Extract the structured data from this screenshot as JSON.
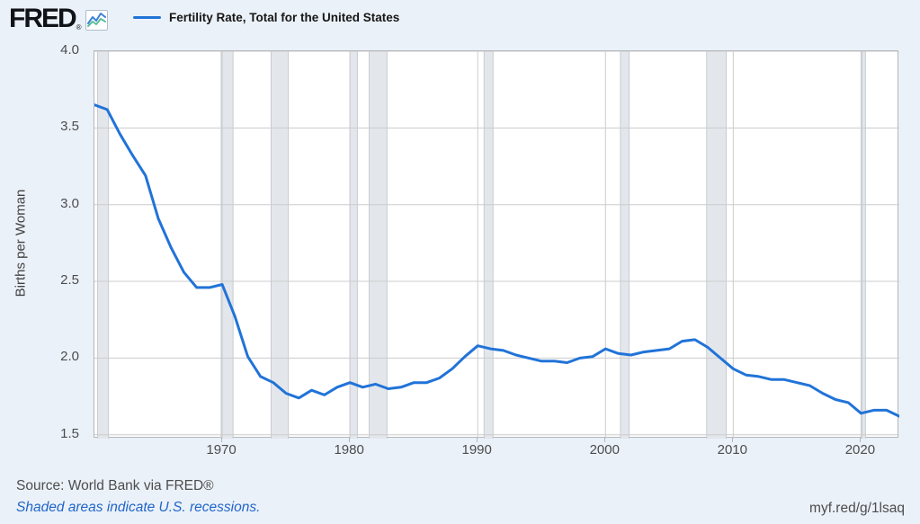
{
  "header": {
    "logo": {
      "text": "FRED",
      "registered": "®"
    },
    "legend": {
      "label": "Fertility Rate, Total for the United States"
    }
  },
  "chart_data": {
    "type": "line",
    "title": "Fertility Rate, Total for the United States",
    "series_name": "Fertility Rate, Total for the United States",
    "xlabel": "",
    "ylabel": "Births per Woman",
    "x": [
      1960,
      1961,
      1962,
      1963,
      1964,
      1965,
      1966,
      1967,
      1968,
      1969,
      1970,
      1971,
      1972,
      1973,
      1974,
      1975,
      1976,
      1977,
      1978,
      1979,
      1980,
      1981,
      1982,
      1983,
      1984,
      1985,
      1986,
      1987,
      1988,
      1989,
      1990,
      1991,
      1992,
      1993,
      1994,
      1995,
      1996,
      1997,
      1998,
      1999,
      2000,
      2001,
      2002,
      2003,
      2004,
      2005,
      2006,
      2007,
      2008,
      2009,
      2010,
      2011,
      2012,
      2013,
      2014,
      2015,
      2016,
      2017,
      2018,
      2019,
      2020,
      2021,
      2022,
      2023
    ],
    "values": [
      3.65,
      3.62,
      3.46,
      3.32,
      3.19,
      2.91,
      2.72,
      2.56,
      2.46,
      2.46,
      2.48,
      2.27,
      2.01,
      1.88,
      1.84,
      1.77,
      1.74,
      1.79,
      1.76,
      1.81,
      1.84,
      1.81,
      1.83,
      1.8,
      1.81,
      1.84,
      1.84,
      1.87,
      1.93,
      2.01,
      2.08,
      2.06,
      2.05,
      2.02,
      2.0,
      1.98,
      1.98,
      1.97,
      2.0,
      2.01,
      2.06,
      2.03,
      2.02,
      2.04,
      2.05,
      2.06,
      2.11,
      2.12,
      2.07,
      2.0,
      1.93,
      1.89,
      1.88,
      1.86,
      1.86,
      1.84,
      1.82,
      1.77,
      1.73,
      1.71,
      1.64,
      1.66,
      1.66,
      1.62
    ],
    "xlim": [
      1960,
      2023
    ],
    "ylim": [
      1.475,
      4.0
    ],
    "y_ticks": [
      "4.0",
      "3.5",
      "3.0",
      "2.5",
      "2.0",
      "1.5"
    ],
    "x_ticks": [
      1970,
      1980,
      1990,
      2000,
      2010,
      2020
    ],
    "grid": true,
    "legend_position": "top-left",
    "recessions": [
      [
        1960.25,
        1961.1
      ],
      [
        1969.92,
        1970.85
      ],
      [
        1973.83,
        1975.17
      ],
      [
        1980.0,
        1980.58
      ],
      [
        1981.5,
        1982.9
      ],
      [
        1990.5,
        1991.2
      ],
      [
        2001.17,
        2001.85
      ],
      [
        2007.92,
        2009.45
      ],
      [
        2020.08,
        2020.35
      ]
    ],
    "colors": {
      "line": "#2173d8",
      "grid": "#cccccc",
      "recession_fill": "#e3e7ec",
      "recession_edge": "#c7ccd2",
      "plot_border": "#b3b7bb",
      "background": "#ebf1f9",
      "plot_background": "#ffffff"
    }
  },
  "footer": {
    "source": "Source: World Bank via FRED®",
    "recession_note": "Shaded areas indicate U.S. recessions.",
    "short_url": "myf.red/g/1lsaq"
  }
}
